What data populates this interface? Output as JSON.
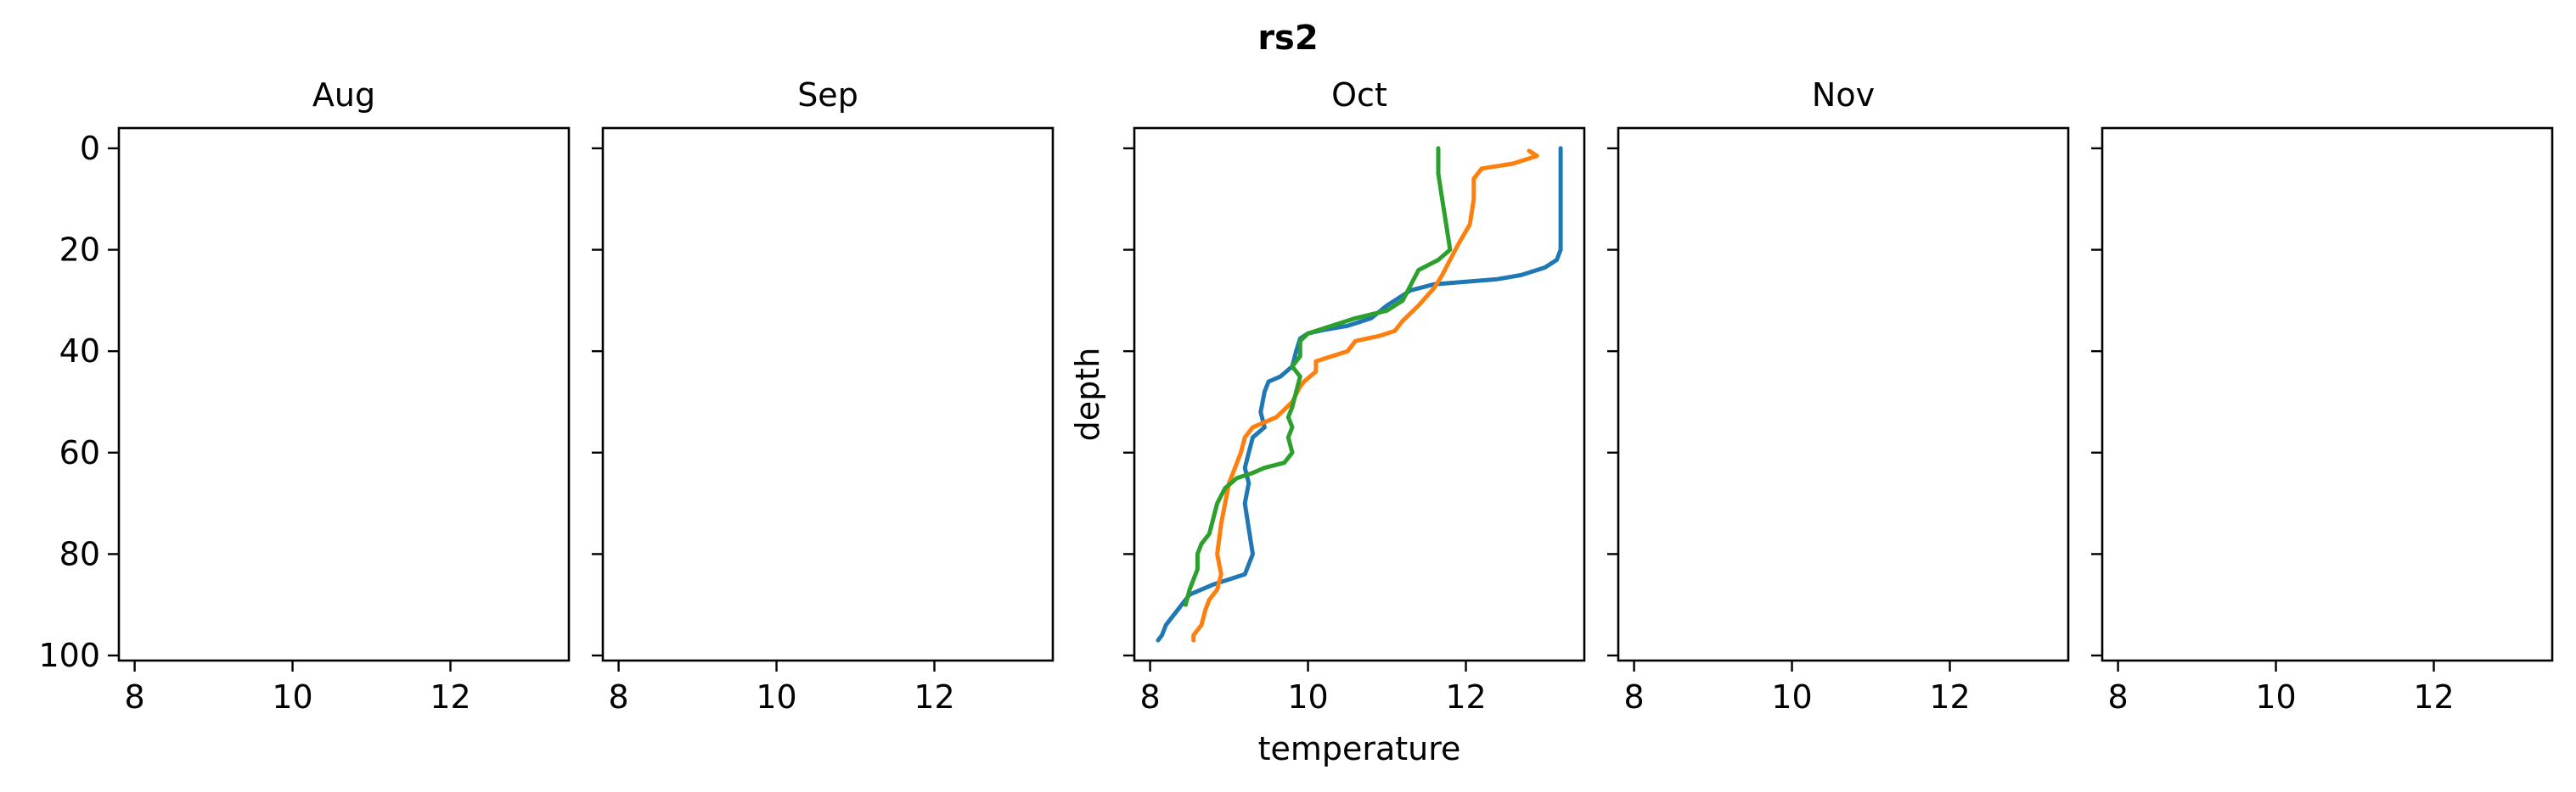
{
  "chart_data": {
    "type": "line",
    "title": "rs2",
    "xlim": [
      7.8,
      13.5
    ],
    "ylim": [
      101,
      -4
    ],
    "y_inverted": true,
    "xticks": [
      "8",
      "10",
      "12"
    ],
    "yticks": [
      "0",
      "20",
      "40",
      "60",
      "80",
      "100"
    ],
    "colors": [
      "#1f77b4",
      "#ff7f0e",
      "#2ca02c"
    ],
    "panels": [
      {
        "title": "Aug",
        "xlabel": "",
        "ylabel": "",
        "series": []
      },
      {
        "title": "Sep",
        "xlabel": "",
        "ylabel": "",
        "series": []
      },
      {
        "title": "Oct",
        "xlabel": "temperature",
        "ylabel": "depth",
        "series": [
          {
            "color": "#1f77b4",
            "points": [
              [
                13.2,
                0
              ],
              [
                13.2,
                10
              ],
              [
                13.2,
                20
              ],
              [
                13.15,
                22
              ],
              [
                13.0,
                23.5
              ],
              [
                12.7,
                25
              ],
              [
                12.4,
                25.8
              ],
              [
                12.0,
                26.3
              ],
              [
                11.6,
                26.8
              ],
              [
                11.3,
                28
              ],
              [
                11.0,
                31
              ],
              [
                10.8,
                33.5
              ],
              [
                10.5,
                35
              ],
              [
                10.2,
                35.8
              ],
              [
                10.0,
                36.5
              ],
              [
                9.9,
                37.5
              ],
              [
                9.85,
                40
              ],
              [
                9.8,
                43
              ],
              [
                9.65,
                45
              ],
              [
                9.5,
                46
              ],
              [
                9.45,
                48
              ],
              [
                9.4,
                52
              ],
              [
                9.45,
                55
              ],
              [
                9.3,
                57
              ],
              [
                9.25,
                60
              ],
              [
                9.2,
                63
              ],
              [
                9.25,
                66
              ],
              [
                9.2,
                70
              ],
              [
                9.25,
                75
              ],
              [
                9.3,
                80
              ],
              [
                9.2,
                84
              ],
              [
                8.8,
                86
              ],
              [
                8.5,
                88
              ],
              [
                8.4,
                90
              ],
              [
                8.3,
                92
              ],
              [
                8.2,
                94
              ],
              [
                8.15,
                96
              ],
              [
                8.1,
                97
              ]
            ]
          },
          {
            "color": "#ff7f0e",
            "points": [
              [
                12.8,
                0.5
              ],
              [
                12.9,
                1.5
              ],
              [
                12.6,
                3
              ],
              [
                12.2,
                4
              ],
              [
                12.1,
                6
              ],
              [
                12.1,
                10
              ],
              [
                12.05,
                15
              ],
              [
                11.9,
                19
              ],
              [
                11.8,
                22
              ],
              [
                11.7,
                25
              ],
              [
                11.6,
                27.5
              ],
              [
                11.4,
                31
              ],
              [
                11.2,
                34
              ],
              [
                11.1,
                36
              ],
              [
                10.9,
                37
              ],
              [
                10.6,
                38
              ],
              [
                10.5,
                40
              ],
              [
                10.3,
                41
              ],
              [
                10.1,
                42
              ],
              [
                10.1,
                44
              ],
              [
                9.95,
                46
              ],
              [
                9.9,
                47
              ],
              [
                9.8,
                50
              ],
              [
                9.6,
                53
              ],
              [
                9.3,
                55
              ],
              [
                9.2,
                57
              ],
              [
                9.15,
                60
              ],
              [
                9.1,
                62
              ],
              [
                9.0,
                66
              ],
              [
                8.95,
                70
              ],
              [
                8.9,
                74
              ],
              [
                8.85,
                80
              ],
              [
                8.9,
                84
              ],
              [
                8.85,
                87
              ],
              [
                8.75,
                89
              ],
              [
                8.7,
                91
              ],
              [
                8.65,
                94
              ],
              [
                8.55,
                96
              ],
              [
                8.55,
                97
              ]
            ]
          },
          {
            "color": "#2ca02c",
            "points": [
              [
                11.65,
                0
              ],
              [
                11.65,
                5
              ],
              [
                11.7,
                10
              ],
              [
                11.75,
                15
              ],
              [
                11.8,
                20
              ],
              [
                11.65,
                22
              ],
              [
                11.4,
                24
              ],
              [
                11.3,
                27
              ],
              [
                11.2,
                30
              ],
              [
                11.0,
                32
              ],
              [
                10.6,
                33.5
              ],
              [
                10.3,
                35
              ],
              [
                10.0,
                36.5
              ],
              [
                9.9,
                38
              ],
              [
                9.9,
                41
              ],
              [
                9.8,
                43
              ],
              [
                9.9,
                45
              ],
              [
                9.85,
                48
              ],
              [
                9.8,
                51
              ],
              [
                9.75,
                53
              ],
              [
                9.8,
                55
              ],
              [
                9.75,
                57
              ],
              [
                9.8,
                60
              ],
              [
                9.7,
                62
              ],
              [
                9.45,
                63
              ],
              [
                9.3,
                64
              ],
              [
                9.1,
                65
              ],
              [
                8.95,
                67
              ],
              [
                8.85,
                70
              ],
              [
                8.8,
                73
              ],
              [
                8.75,
                76
              ],
              [
                8.65,
                78
              ],
              [
                8.6,
                80
              ],
              [
                8.6,
                83
              ],
              [
                8.5,
                87
              ],
              [
                8.45,
                90
              ]
            ]
          }
        ]
      },
      {
        "title": "Nov",
        "xlabel": "",
        "ylabel": "",
        "series": []
      },
      {
        "title": "",
        "xlabel": "",
        "ylabel": "",
        "series": []
      }
    ]
  }
}
